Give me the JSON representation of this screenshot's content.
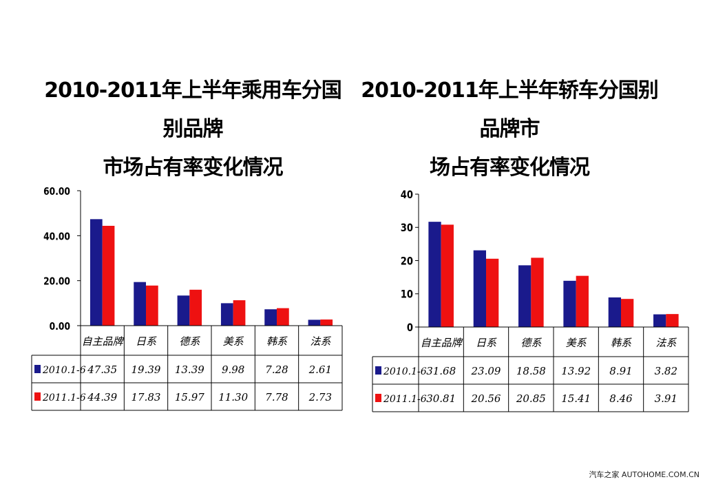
{
  "chart_data": [
    {
      "type": "bar",
      "title": "2010-2011年上半年乘用车分国别品牌市场占有率变化情况",
      "title_lines": [
        "2010-2011年上半年乘用车分国别品牌",
        "市场占有率变化情况"
      ],
      "categories": [
        "自主品牌",
        "日系",
        "德系",
        "美系",
        "韩系",
        "法系"
      ],
      "series": [
        {
          "name": "2010.1-6",
          "color": "#1a1a8c",
          "values": [
            47.35,
            19.39,
            13.39,
            9.98,
            7.28,
            2.61
          ],
          "labels": [
            "47.35",
            "19.39",
            "13.39",
            "9.98",
            "7.28",
            "2.61"
          ]
        },
        {
          "name": "2011.1-6",
          "color": "#ee1111",
          "values": [
            44.39,
            17.83,
            15.97,
            11.3,
            7.78,
            2.73
          ],
          "labels": [
            "44.39",
            "17.83",
            "15.97",
            "11.30",
            "7.78",
            "2.73"
          ]
        }
      ],
      "ylim": [
        0,
        60
      ],
      "yticks": [
        "0.00",
        "20.00",
        "40.00",
        "60.00"
      ],
      "ytick_values": [
        0,
        20,
        40,
        60
      ],
      "xlabel": "",
      "ylabel": "",
      "grid": false,
      "legend": "data-table"
    },
    {
      "type": "bar",
      "title": "2010-2011年上半年轿车分国别品牌市场占有率变化情况",
      "title_lines": [
        "2010-2011年上半年轿车分国别品牌市",
        "场占有率变化情况"
      ],
      "categories": [
        "自主品牌",
        "日系",
        "德系",
        "美系",
        "韩系",
        "法系"
      ],
      "series": [
        {
          "name": "2010.1-6",
          "color": "#1a1a8c",
          "values": [
            31.68,
            23.09,
            18.58,
            13.92,
            8.91,
            3.82
          ],
          "labels": [
            "31.68",
            "23.09",
            "18.58",
            "13.92",
            "8.91",
            "3.82"
          ]
        },
        {
          "name": "2011.1-6",
          "color": "#ee1111",
          "values": [
            30.81,
            20.56,
            20.85,
            15.41,
            8.46,
            3.91
          ],
          "labels": [
            "30.81",
            "20.56",
            "20.85",
            "15.41",
            "8.46",
            "3.91"
          ]
        }
      ],
      "ylim": [
        0,
        40
      ],
      "yticks": [
        "0",
        "10",
        "20",
        "30",
        "40"
      ],
      "ytick_values": [
        0,
        10,
        20,
        30,
        40
      ],
      "xlabel": "",
      "ylabel": "",
      "grid": false,
      "legend": "data-table"
    }
  ],
  "watermark": "汽车之家 AUTOHOME.COM.CN"
}
